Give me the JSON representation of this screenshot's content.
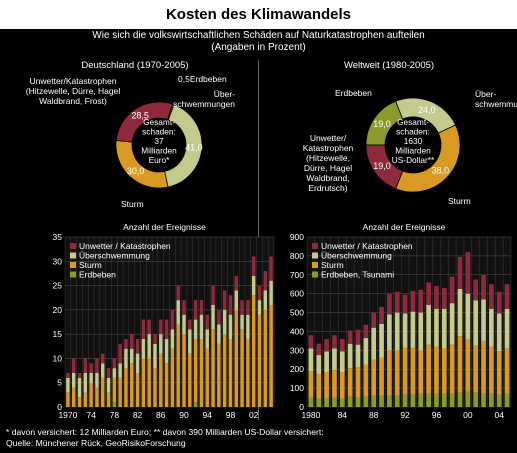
{
  "header": {
    "title": "Kosten des Klimawandels",
    "subtitle_line1": "Wie sich die volkswirtschaftlichen Schäden auf Naturkatastrophen aufteilen",
    "subtitle_line2": "(Angaben in Prozent)"
  },
  "colors": {
    "unwetter": "#8e2a3c",
    "ueberschwemmung": "#c4c98e",
    "sturm": "#d99a23",
    "erdbeben": "#8c9a2c"
  },
  "footer": {
    "line1": "*  davon versichert: 12 Milliarden Euro; ** davon 390 Milliarden US-Dollar versichert:",
    "line2": "Quelle: Münchener Rück, GeoRisikoForschung"
  },
  "chart_data": [
    {
      "type": "pie",
      "title": "Deutschland (1970-2005)",
      "center_label": [
        "Gesamt-",
        "schaden:",
        "37",
        "Milliarden",
        "Euro*"
      ],
      "slices": [
        {
          "label": "Unwetter/Katastrophen (Hitzewelle, Dürre, Hagel Waldbrand, Frost)",
          "label_lines": [
            "Unwetter/Katastrophen",
            "(Hitzewelle, Dürre, Hagel",
            "Waldbrand, Frost)"
          ],
          "value": 28.5,
          "value_label": "28,5",
          "color_key": "unwetter"
        },
        {
          "label": "Erdbeben",
          "label_lines": [
            "0,5Erdbeben"
          ],
          "value": 0.5,
          "value_label": "",
          "color_key": "erdbeben"
        },
        {
          "label": "Überschwemmungen",
          "label_lines": [
            "Über-",
            "schwemmungen"
          ],
          "value": 41.0,
          "value_label": "41,0",
          "color_key": "ueberschwemmung"
        },
        {
          "label": "Sturm",
          "label_lines": [
            "Sturm"
          ],
          "value": 30.0,
          "value_label": "30,0",
          "color_key": "sturm"
        }
      ]
    },
    {
      "type": "pie",
      "title": "Weltweit (1980-2005)",
      "center_label": [
        "Gesamt-",
        "schaden:",
        "1630",
        "Milliarden",
        "US-Dollar**"
      ],
      "slices": [
        {
          "label": "Erdbeben",
          "label_lines": [
            "Erdbeben"
          ],
          "value": 19.0,
          "value_label": "19,0",
          "color_key": "erdbeben"
        },
        {
          "label": "Überschwemmungen",
          "label_lines": [
            "Über-",
            "schwemmungen"
          ],
          "value": 24.0,
          "value_label": "24,0",
          "color_key": "ueberschwemmung"
        },
        {
          "label": "Sturm",
          "label_lines": [
            "Sturm"
          ],
          "value": 38.0,
          "value_label": "38,0",
          "color_key": "sturm"
        },
        {
          "label": "Unwetter/Katastrophen (Hitzewelle, Dürre, Hagel Waldbrand, Erdrutsch)",
          "label_lines": [
            "Unwetter/",
            "Katastrophen",
            "(Hitzewelle,",
            "Dürre, Hagel",
            "Waldbrand,",
            "Erdrutsch)"
          ],
          "value": 19.0,
          "value_label": "19,0",
          "color_key": "unwetter"
        }
      ]
    },
    {
      "type": "bar",
      "stacked": true,
      "title": "Anzahl der Ereignisse",
      "ylim": [
        0,
        35
      ],
      "yticks": [
        0,
        5,
        10,
        15,
        20,
        25,
        30,
        35
      ],
      "xtick_labels": [
        "1970",
        "74",
        "78",
        "82",
        "86",
        "90",
        "94",
        "98",
        "02"
      ],
      "legend": [
        "Unwetter / Katastrophen",
        "Überschwemmung",
        "Sturm",
        "Erdbeben"
      ],
      "x": [
        1970,
        1971,
        1972,
        1973,
        1974,
        1975,
        1976,
        1977,
        1978,
        1979,
        1980,
        1981,
        1982,
        1983,
        1984,
        1985,
        1986,
        1987,
        1988,
        1989,
        1990,
        1991,
        1992,
        1993,
        1994,
        1995,
        1996,
        1997,
        1998,
        1999,
        2000,
        2001,
        2002,
        2003,
        2004,
        2005
      ],
      "series": [
        {
          "name": "Erdbeben",
          "color_key": "erdbeben",
          "values": [
            0,
            0,
            0,
            0,
            0,
            0,
            0,
            0,
            1,
            0,
            0,
            0,
            0,
            0,
            0,
            0,
            0,
            0,
            0,
            0,
            0,
            0,
            1,
            0,
            0,
            0,
            0,
            0,
            0,
            0,
            0,
            0,
            0,
            0,
            0,
            0
          ]
        },
        {
          "name": "Sturm",
          "color_key": "sturm",
          "values": [
            3,
            4,
            2,
            3,
            5,
            4,
            6,
            3,
            5,
            6,
            8,
            9,
            7,
            10,
            10,
            8,
            11,
            9,
            12,
            17,
            15,
            11,
            13,
            14,
            12,
            16,
            13,
            15,
            14,
            20,
            16,
            14,
            23,
            19,
            20,
            21
          ]
        },
        {
          "name": "Überschwemmung",
          "color_key": "ueberschwemmung",
          "values": [
            3,
            3,
            4,
            4,
            2,
            3,
            3,
            3,
            2,
            3,
            4,
            3,
            4,
            4,
            5,
            5,
            4,
            5,
            4,
            5,
            4,
            5,
            4,
            5,
            4,
            5,
            4,
            5,
            5,
            4,
            3,
            5,
            4,
            3,
            4,
            5
          ]
        },
        {
          "name": "Unwetter / Katastrophen",
          "color_key": "unwetter",
          "values": [
            1,
            3,
            1,
            3,
            2,
            3,
            2,
            2,
            2,
            4,
            2,
            3,
            3,
            4,
            3,
            2,
            3,
            4,
            4,
            3,
            3,
            2,
            4,
            3,
            3,
            4,
            3,
            4,
            4,
            3,
            3,
            3,
            4,
            3,
            4,
            5
          ]
        }
      ]
    },
    {
      "type": "bar",
      "stacked": true,
      "title": "Anzahl der Ereignisse",
      "ylim": [
        0,
        900
      ],
      "yticks": [
        0,
        100,
        200,
        300,
        400,
        500,
        600,
        700,
        800,
        900
      ],
      "xtick_labels": [
        "1980",
        "84",
        "88",
        "92",
        "96",
        "00",
        "04"
      ],
      "legend": [
        "Unwetter / Katastrophen",
        "Überschwemmung",
        "Sturm",
        "Erdbeben, Tsunami"
      ],
      "x": [
        1980,
        1981,
        1982,
        1983,
        1984,
        1985,
        1986,
        1987,
        1988,
        1989,
        1990,
        1991,
        1992,
        1993,
        1994,
        1995,
        1996,
        1997,
        1998,
        1999,
        2000,
        2001,
        2002,
        2003,
        2004,
        2005
      ],
      "series": [
        {
          "name": "Erdbeben, Tsunami",
          "color_key": "erdbeben",
          "values": [
            50,
            45,
            45,
            50,
            45,
            55,
            50,
            55,
            60,
            60,
            60,
            60,
            65,
            65,
            70,
            70,
            70,
            70,
            70,
            75,
            80,
            75,
            70,
            70,
            65,
            70
          ]
        },
        {
          "name": "Sturm",
          "color_key": "sturm",
          "values": [
            140,
            130,
            140,
            145,
            140,
            150,
            160,
            170,
            190,
            200,
            240,
            240,
            250,
            250,
            230,
            260,
            250,
            240,
            260,
            300,
            280,
            250,
            280,
            250,
            230,
            240
          ]
        },
        {
          "name": "Überschwemmung",
          "color_key": "ueberschwemmung",
          "values": [
            120,
            100,
            110,
            115,
            110,
            130,
            120,
            140,
            170,
            180,
            190,
            200,
            180,
            190,
            200,
            210,
            200,
            210,
            220,
            250,
            240,
            240,
            220,
            200,
            200,
            210
          ]
        },
        {
          "name": "Unwetter / Katastrophen",
          "color_key": "unwetter",
          "values": [
            70,
            60,
            65,
            70,
            65,
            70,
            80,
            70,
            80,
            90,
            110,
            110,
            100,
            110,
            120,
            120,
            120,
            110,
            140,
            170,
            220,
            110,
            130,
            130,
            115,
            130
          ]
        }
      ]
    }
  ]
}
